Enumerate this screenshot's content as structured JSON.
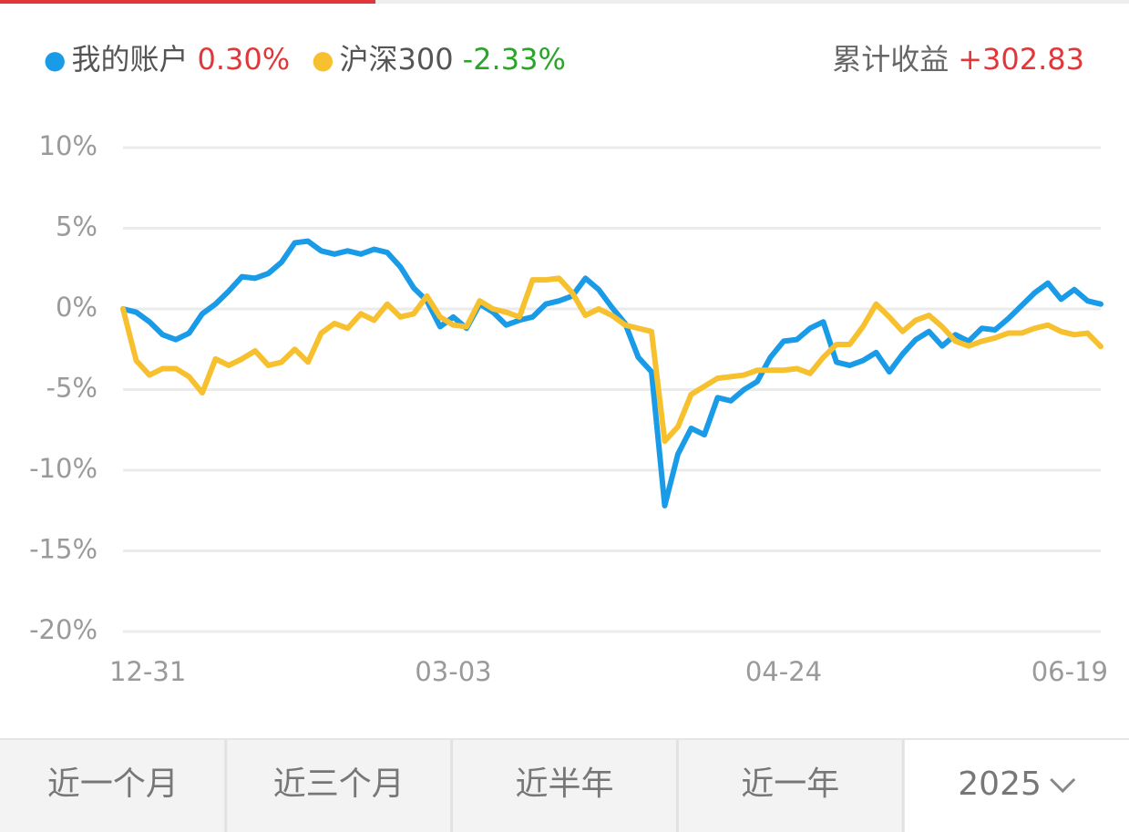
{
  "chart_data": {
    "type": "line",
    "summary": {
      "label": "累计收益",
      "value": {
        "value": 302.83,
        "label": "+302.83"
      }
    },
    "categories": [
      "12-31",
      null,
      null,
      null,
      null,
      null,
      null,
      null,
      null,
      null,
      null,
      null,
      null,
      null,
      null,
      null,
      null,
      null,
      null,
      null,
      null,
      null,
      null,
      null,
      null,
      "03-03",
      null,
      null,
      null,
      null,
      null,
      null,
      null,
      null,
      null,
      null,
      null,
      null,
      null,
      null,
      null,
      null,
      null,
      null,
      null,
      null,
      null,
      null,
      null,
      null,
      "04-24",
      null,
      null,
      null,
      null,
      null,
      null,
      null,
      null,
      null,
      null,
      null,
      null,
      null,
      null,
      null,
      null,
      null,
      null,
      null,
      null,
      null,
      null,
      null,
      "06-19"
    ],
    "series": [
      {
        "name": "我的账户",
        "color": "#1a9be8",
        "change": {
          "value": 0.3,
          "label": "0.30%"
        },
        "change_color": "#e0383a",
        "values": [
          0,
          -0.2,
          -0.8,
          -1.6,
          -1.9,
          -1.5,
          -0.3,
          0.3,
          1.1,
          2.0,
          1.9,
          2.2,
          2.9,
          4.1,
          4.2,
          3.6,
          3.4,
          3.6,
          3.4,
          3.7,
          3.5,
          2.6,
          1.3,
          0.5,
          -1.1,
          -0.5,
          -1.2,
          0.3,
          -0.2,
          -1.0,
          -0.7,
          -0.5,
          0.3,
          0.5,
          0.8,
          1.9,
          1.2,
          0.1,
          -0.9,
          -3.0,
          -3.9,
          -12.2,
          -9.0,
          -7.4,
          -7.8,
          -5.5,
          -5.7,
          -5.0,
          -4.5,
          -3.0,
          -2.0,
          -1.9,
          -1.2,
          -0.8,
          -3.3,
          -3.5,
          -3.2,
          -2.7,
          -3.9,
          -2.8,
          -1.9,
          -1.4,
          -2.3,
          -1.6,
          -2.0,
          -1.2,
          -1.3,
          -0.6,
          0.2,
          1.0,
          1.6,
          0.6,
          1.2,
          0.5,
          0.3
        ]
      },
      {
        "name": "沪深300",
        "color": "#f7c02e",
        "change": {
          "value": -2.33,
          "label": "-2.33%"
        },
        "change_color": "#2aa52a",
        "values": [
          0,
          -3.2,
          -4.1,
          -3.7,
          -3.7,
          -4.2,
          -5.2,
          -3.1,
          -3.5,
          -3.1,
          -2.6,
          -3.5,
          -3.3,
          -2.5,
          -3.3,
          -1.5,
          -0.9,
          -1.2,
          -0.3,
          -0.7,
          0.3,
          -0.5,
          -0.3,
          0.8,
          -0.5,
          -1.0,
          -1.1,
          0.5,
          0,
          -0.2,
          -0.5,
          1.8,
          1.8,
          1.9,
          1.0,
          -0.4,
          0.0,
          -0.4,
          -1.0,
          -1.2,
          -1.4,
          -8.2,
          -7.3,
          -5.3,
          -4.8,
          -4.3,
          -4.2,
          -4.1,
          -3.8,
          -3.8,
          -3.8,
          -3.7,
          -4.0,
          -3.0,
          -2.2,
          -2.2,
          -1.1,
          0.3,
          -0.5,
          -1.4,
          -0.7,
          -0.4,
          -1.1,
          -2.0,
          -2.3,
          -2.0,
          -1.8,
          -1.5,
          -1.5,
          -1.2,
          -1.0,
          -1.4,
          -1.6,
          -1.5,
          -2.33
        ]
      }
    ],
    "ylim": [
      -20,
      10
    ],
    "yticks": [
      {
        "value": 10,
        "label": "10%"
      },
      {
        "value": 5,
        "label": "5%"
      },
      {
        "value": 0,
        "label": "0%"
      },
      {
        "value": -5,
        "label": "-5%"
      },
      {
        "value": -10,
        "label": "-10%"
      },
      {
        "value": -15,
        "label": "-15%"
      },
      {
        "value": -20,
        "label": "-20%"
      }
    ],
    "grid": true,
    "tabs": [
      "近一个月",
      "近三个月",
      "近半年",
      "近一年",
      "2025"
    ]
  }
}
